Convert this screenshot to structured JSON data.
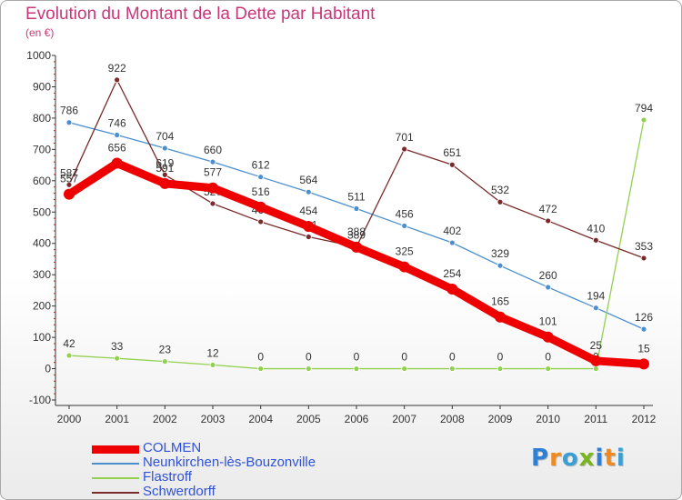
{
  "title": "Evolution du Montant de la Dette par Habitant",
  "unit": "(en €)",
  "logo": {
    "text": "Proxiti",
    "letter_colors": [
      "#2f7fd4",
      "#f08a1c",
      "#3a9fd6",
      "#7ab51d",
      "#2f7fd4",
      "#f08a1c",
      "#3a9fd6"
    ]
  },
  "chart_data": {
    "type": "line",
    "title": "Evolution du Montant de la Dette par Habitant",
    "subtitle": "(en €)",
    "x": [
      "2000",
      "2001",
      "2002",
      "2003",
      "2004",
      "2005",
      "2006",
      "2007",
      "2008",
      "2009",
      "2010",
      "2011",
      "2012"
    ],
    "ylim": [
      -100,
      1000
    ],
    "yticks": [
      -100,
      0,
      100,
      200,
      300,
      400,
      500,
      600,
      700,
      800,
      900,
      1000
    ],
    "grid": false,
    "legend_position": "bottom-left",
    "series": [
      {
        "name": "COLMEN",
        "color": "#ee0000",
        "emphasis": true,
        "values": [
          557,
          656,
          591,
          577,
          516,
          454,
          388,
          325,
          254,
          165,
          101,
          25,
          15
        ]
      },
      {
        "name": "Neunkirchen-lès-Bouzonville",
        "color": "#4b8fcf",
        "values": [
          786,
          746,
          704,
          660,
          612,
          564,
          511,
          456,
          402,
          329,
          260,
          194,
          126
        ]
      },
      {
        "name": "Flastroff",
        "color": "#92d050",
        "values": [
          42,
          33,
          23,
          12,
          0,
          0,
          0,
          0,
          0,
          0,
          0,
          0,
          794
        ]
      },
      {
        "name": "Schwerdorff",
        "color": "#7a2a2a",
        "values": [
          587,
          922,
          619,
          527,
          469,
          421,
          389,
          701,
          651,
          532,
          472,
          410,
          353
        ]
      }
    ]
  }
}
